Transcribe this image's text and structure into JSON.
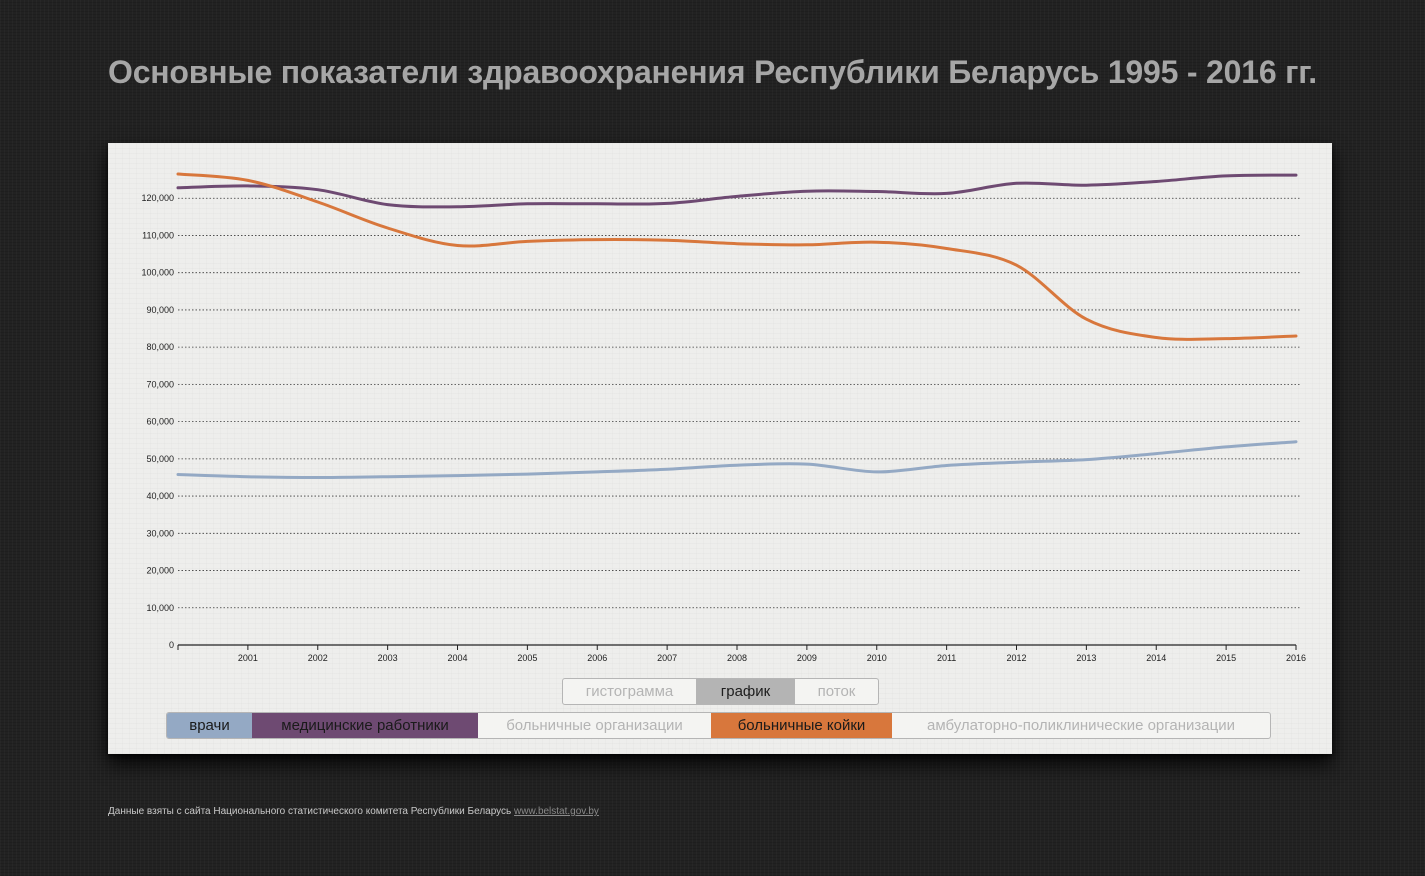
{
  "title": "Основные показатели здравоохранения Республики Беларусь 1995 - 2016 гг.",
  "view_toggle": [
    {
      "label": "гистограмма",
      "active": false
    },
    {
      "label": "график",
      "active": true
    },
    {
      "label": "поток",
      "active": false
    }
  ],
  "legend": [
    {
      "label": "врачи",
      "active": true,
      "color": "#94a9c4"
    },
    {
      "label": "медицинские работники",
      "active": true,
      "color": "#6e4a72"
    },
    {
      "label": "больничные организации",
      "active": false,
      "color": "#f4f4f2"
    },
    {
      "label": "больничные койки",
      "active": true,
      "color": "#d8773c"
    },
    {
      "label": "амбулаторно-поликлинические организации",
      "active": false,
      "color": "#f4f4f2"
    }
  ],
  "footer": {
    "text": "Данные взяты с сайта Национального статистического комитета Республики Беларусь",
    "link": "www.belstat.gov.by"
  },
  "chart_data": {
    "type": "line",
    "x": [
      2000,
      2001,
      2002,
      2003,
      2004,
      2005,
      2006,
      2007,
      2008,
      2009,
      2010,
      2011,
      2012,
      2013,
      2014,
      2015,
      2016
    ],
    "x_tick_labels": [
      "2001",
      "2002",
      "2003",
      "2004",
      "2005",
      "2006",
      "2007",
      "2008",
      "2009",
      "2010",
      "2011",
      "2012",
      "2013",
      "2014",
      "2015",
      "2016"
    ],
    "ylim": [
      0,
      130000
    ],
    "y_ticks": [
      0,
      10000,
      20000,
      30000,
      40000,
      50000,
      60000,
      70000,
      80000,
      90000,
      100000,
      110000,
      120000
    ],
    "y_tick_labels": [
      "0",
      "10,000",
      "20,000",
      "30,000",
      "40,000",
      "50,000",
      "60,000",
      "70,000",
      "80,000",
      "90,000",
      "100,000",
      "110,000",
      "120,000"
    ],
    "grid": true,
    "series": [
      {
        "name": "врачи",
        "color": "#94a9c4",
        "values": [
          45800,
          45200,
          45000,
          45200,
          45500,
          45900,
          46500,
          47200,
          48300,
          48600,
          46500,
          48200,
          49100,
          49800,
          51400,
          53200,
          54600
        ]
      },
      {
        "name": "медицинские работники",
        "color": "#6e4a72",
        "values": [
          122800,
          123300,
          122300,
          118300,
          117700,
          118500,
          118500,
          118600,
          120500,
          121900,
          121800,
          121300,
          124000,
          123500,
          124500,
          126000,
          126200
        ]
      },
      {
        "name": "больничные койки",
        "color": "#d8773c",
        "values": [
          126500,
          124800,
          119000,
          112000,
          107300,
          108400,
          108900,
          108700,
          107800,
          107500,
          108200,
          106500,
          102000,
          87500,
          82600,
          82300,
          83000
        ]
      }
    ]
  }
}
